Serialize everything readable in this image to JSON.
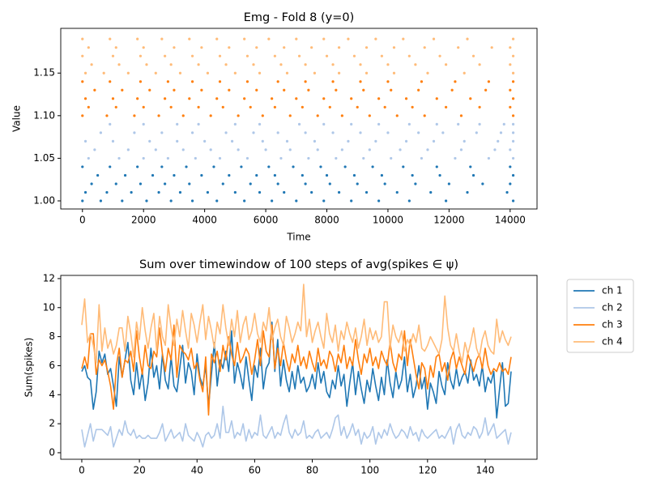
{
  "chart_data": [
    {
      "type": "scatter",
      "title": "Emg - Fold 8 (y=0)",
      "x_label": "Time",
      "y_label": "Value",
      "xlim": [
        -710,
        14880
      ],
      "ylim": [
        0.9905,
        1.2025
      ],
      "xticks": [
        0,
        2000,
        4000,
        6000,
        8000,
        10000,
        12000,
        14000
      ],
      "yticks": [
        {
          "value": 1.0,
          "label": "1.00"
        },
        1.05,
        {
          "value": 1.1,
          "label": "1.10"
        },
        1.15
      ],
      "series": [
        {
          "color": "#1f77b4",
          "y": 1.0,
          "x": [
            0,
            600,
            1300,
            2100,
            2900,
            3600,
            4400,
            5300,
            6200,
            7000,
            7900,
            8800,
            9700,
            10700,
            11900,
            14100
          ]
        },
        {
          "color": "#1f77b4",
          "y": 1.01,
          "x": [
            100,
            800,
            1600,
            2500,
            3200,
            4100,
            5000,
            5800,
            6600,
            7500,
            8400,
            9300,
            10300,
            11400,
            12600,
            13900
          ]
        },
        {
          "color": "#1f77b4",
          "y": 1.02,
          "x": [
            300,
            1100,
            1900,
            2700,
            3500,
            4600,
            5500,
            6400,
            7300,
            8100,
            9000,
            9900,
            10900,
            12000,
            13100,
            14000
          ]
        },
        {
          "color": "#1f77b4",
          "y": 1.03,
          "x": [
            500,
            1400,
            2300,
            3000,
            3900,
            4800,
            5700,
            6300,
            7200,
            8000,
            8900,
            9800,
            10800,
            11700,
            12800,
            14100
          ]
        },
        {
          "color": "#1f77b4",
          "y": 1.04,
          "x": [
            0,
            900,
            1800,
            2600,
            3400,
            4300,
            5200,
            6100,
            6900,
            7800,
            8600,
            9500,
            10500,
            11600,
            12700,
            14000
          ]
        },
        {
          "color": "#aec7e8",
          "y": 1.05,
          "x": [
            200,
            1200,
            2000,
            2800,
            3700,
            4500,
            5400,
            6500,
            7400,
            8300,
            9200,
            10100,
            11100,
            12200,
            13300,
            14100
          ]
        },
        {
          "color": "#aec7e8",
          "y": 1.06,
          "x": [
            400,
            1500,
            2400,
            3300,
            4200,
            5100,
            6000,
            6800,
            7700,
            8500,
            9400,
            10400,
            11300,
            12400,
            13500,
            14000
          ]
        },
        {
          "color": "#aec7e8",
          "y": 1.07,
          "x": [
            100,
            1000,
            2200,
            3100,
            4000,
            4900,
            5900,
            6700,
            7600,
            8700,
            9600,
            10600,
            11500,
            12500,
            13600,
            14100
          ]
        },
        {
          "color": "#aec7e8",
          "y": 1.08,
          "x": [
            600,
            1700,
            2600,
            3600,
            4700,
            5600,
            6400,
            7300,
            8200,
            9100,
            10000,
            11000,
            11800,
            12900,
            13700,
            14100
          ]
        },
        {
          "color": "#aec7e8",
          "y": 1.09,
          "x": [
            900,
            2000,
            3100,
            3800,
            5000,
            5800,
            7100,
            7900,
            8800,
            9700,
            10700,
            11600,
            12300,
            13000,
            13800,
            14100
          ]
        },
        {
          "color": "#ff7f0e",
          "y": 1.1,
          "x": [
            0,
            800,
            1700,
            2500,
            3300,
            4200,
            5100,
            5900,
            6800,
            7700,
            8500,
            9400,
            10300,
            11200,
            12400,
            14100
          ]
        },
        {
          "color": "#ff7f0e",
          "y": 1.11,
          "x": [
            200,
            1100,
            2000,
            2900,
            3800,
            4600,
            5500,
            6300,
            7200,
            8100,
            9000,
            9900,
            10800,
            11900,
            13000,
            14000
          ]
        },
        {
          "color": "#ff7f0e",
          "y": 1.12,
          "x": [
            100,
            1000,
            1800,
            2700,
            3500,
            4400,
            5300,
            6200,
            7000,
            7900,
            8800,
            9700,
            10600,
            11600,
            12700,
            14100
          ]
        },
        {
          "color": "#ff7f0e",
          "y": 1.13,
          "x": [
            400,
            1300,
            2200,
            3000,
            3900,
            4800,
            5700,
            6600,
            7400,
            8300,
            9200,
            10100,
            11000,
            12100,
            13200,
            14000
          ]
        },
        {
          "color": "#ff7f0e",
          "y": 1.14,
          "x": [
            0,
            900,
            1900,
            2800,
            3600,
            4500,
            5400,
            6400,
            7300,
            8200,
            9100,
            10000,
            11100,
            12200,
            13300,
            14100
          ]
        },
        {
          "color": "#ffbb78",
          "y": 1.15,
          "x": [
            100,
            700,
            1500,
            2400,
            3200,
            4100,
            5000,
            5800,
            6700,
            7600,
            8400,
            9300,
            10200,
            11300,
            12500,
            14100
          ]
        },
        {
          "color": "#ffbb78",
          "y": 1.16,
          "x": [
            300,
            1200,
            2100,
            2900,
            3800,
            4700,
            5600,
            6500,
            7300,
            8200,
            9100,
            10000,
            10900,
            11900,
            13000,
            14000
          ]
        },
        {
          "color": "#ffbb78",
          "y": 1.17,
          "x": [
            0,
            1000,
            1900,
            2700,
            3600,
            4500,
            5400,
            6300,
            7100,
            8000,
            8900,
            9800,
            10700,
            11700,
            12800,
            14100
          ]
        },
        {
          "color": "#ffbb78",
          "y": 1.18,
          "x": [
            200,
            1100,
            2000,
            3000,
            3900,
            4800,
            5700,
            6600,
            7500,
            8400,
            9300,
            10200,
            11200,
            12300,
            13400,
            14000
          ]
        },
        {
          "color": "#ffbb78",
          "y": 1.19,
          "x": [
            0,
            900,
            1800,
            2600,
            3500,
            4400,
            5300,
            6100,
            7000,
            7900,
            8700,
            9600,
            10500,
            11500,
            12600,
            14100
          ]
        }
      ]
    },
    {
      "type": "line",
      "title": "Sum over timewindow of 100 steps of avg(spikes ∈ ψ)",
      "y_label": "Sum(spikes)",
      "xlim": [
        -7.3,
        158
      ],
      "ylim": [
        -0.45,
        12.22
      ],
      "xticks": [
        0,
        20,
        40,
        60,
        80,
        100,
        120,
        140
      ],
      "yticks": [
        0,
        2,
        4,
        6,
        8,
        10,
        12
      ],
      "series": [
        {
          "name": "ch 1",
          "color": "#1f77b4",
          "values": [
            5.6,
            6.0,
            5.2,
            5.0,
            3.0,
            4.2,
            7.0,
            6.2,
            6.8,
            5.4,
            5.8,
            4.6,
            3.2,
            6.6,
            5.2,
            6.4,
            7.6,
            5.0,
            4.0,
            6.2,
            4.4,
            5.6,
            3.6,
            4.8,
            7.2,
            5.2,
            6.0,
            4.4,
            6.8,
            5.0,
            4.4,
            6.6,
            4.6,
            4.2,
            5.8,
            7.4,
            4.8,
            6.2,
            5.6,
            4.0,
            6.8,
            5.2,
            4.6,
            6.0,
            3.2,
            5.4,
            7.6,
            4.6,
            6.4,
            5.8,
            7.0,
            5.6,
            8.4,
            4.8,
            6.2,
            5.4,
            4.4,
            6.6,
            5.0,
            3.6,
            6.0,
            5.2,
            7.2,
            4.4,
            5.8,
            6.2,
            9.0,
            5.6,
            7.8,
            4.6,
            6.4,
            5.0,
            4.2,
            5.6,
            4.4,
            6.0,
            4.8,
            5.2,
            4.2,
            4.6,
            5.4,
            4.4,
            6.2,
            4.8,
            5.6,
            4.2,
            3.8,
            5.0,
            4.4,
            6.0,
            4.6,
            5.4,
            3.2,
            4.8,
            6.2,
            4.0,
            5.6,
            4.4,
            3.4,
            5.0,
            4.2,
            5.8,
            4.6,
            3.6,
            5.2,
            4.0,
            6.4,
            4.8,
            3.8,
            5.6,
            4.4,
            5.0,
            6.6,
            4.2,
            5.4,
            3.8,
            4.6,
            6.0,
            4.4,
            5.2,
            3.0,
            4.8,
            4.2,
            3.4,
            5.6,
            4.6,
            4.0,
            6.2,
            5.0,
            4.4,
            5.8,
            4.6,
            5.2,
            5.6,
            4.8,
            6.4,
            5.0,
            5.4,
            4.6,
            6.0,
            4.2,
            5.2,
            4.8,
            5.6,
            2.4,
            4.4,
            6.2,
            3.2,
            3.4,
            5.6
          ]
        },
        {
          "name": "ch 2",
          "color": "#aec7e8",
          "values": [
            1.6,
            0.4,
            1.2,
            2.0,
            0.8,
            1.6,
            1.6,
            1.6,
            1.4,
            1.2,
            1.8,
            0.4,
            1.0,
            1.6,
            1.2,
            2.2,
            1.4,
            1.2,
            1.6,
            1.0,
            1.2,
            1.0,
            1.0,
            1.2,
            1.0,
            1.0,
            1.0,
            1.4,
            2.0,
            0.8,
            1.2,
            1.6,
            1.0,
            1.2,
            1.4,
            0.8,
            2.0,
            1.2,
            1.0,
            0.8,
            1.4,
            1.0,
            0.4,
            1.2,
            1.4,
            1.0,
            1.2,
            2.0,
            1.0,
            3.2,
            1.4,
            1.4,
            2.2,
            1.0,
            1.4,
            1.2,
            2.0,
            0.8,
            1.6,
            1.0,
            1.4,
            1.2,
            2.6,
            1.2,
            1.0,
            1.4,
            1.8,
            1.0,
            1.4,
            1.2,
            2.0,
            2.6,
            1.4,
            1.0,
            1.6,
            1.2,
            1.4,
            2.2,
            1.0,
            1.2,
            1.0,
            1.4,
            1.6,
            1.0,
            1.2,
            1.4,
            1.0,
            1.6,
            2.4,
            2.6,
            1.2,
            1.8,
            1.0,
            1.4,
            2.0,
            1.2,
            1.6,
            0.6,
            1.4,
            1.0,
            1.2,
            1.8,
            0.6,
            1.4,
            1.0,
            1.6,
            1.2,
            2.0,
            1.4,
            1.0,
            1.2,
            1.6,
            1.4,
            1.0,
            1.8,
            1.2,
            1.4,
            0.8,
            1.6,
            1.2,
            1.0,
            1.2,
            1.4,
            1.6,
            1.0,
            1.2,
            1.0,
            1.4,
            1.8,
            0.6,
            1.6,
            2.0,
            1.2,
            1.0,
            1.4,
            1.2,
            1.8,
            1.6,
            1.0,
            1.4,
            2.4,
            1.2,
            1.6,
            2.0,
            1.0,
            1.2,
            1.4,
            1.6,
            0.6,
            1.4
          ]
        },
        {
          "name": "ch 3",
          "color": "#ff7f0e",
          "values": [
            5.8,
            6.6,
            5.8,
            8.2,
            8.2,
            5.4,
            6.4,
            6.0,
            6.4,
            5.6,
            4.6,
            3.0,
            6.0,
            7.2,
            5.2,
            6.4,
            6.2,
            7.0,
            5.6,
            8.4,
            6.6,
            5.4,
            7.4,
            6.0,
            5.8,
            7.0,
            6.6,
            8.6,
            6.8,
            5.6,
            7.2,
            6.4,
            8.8,
            5.2,
            7.4,
            7.0,
            6.8,
            6.4,
            7.2,
            5.8,
            6.2,
            5.0,
            4.2,
            6.6,
            2.6,
            6.8,
            6.2,
            7.0,
            5.6,
            7.4,
            6.4,
            8.0,
            6.8,
            6.0,
            7.6,
            6.2,
            6.6,
            7.2,
            6.8,
            5.4,
            6.4,
            7.8,
            6.0,
            8.4,
            7.0,
            6.6,
            8.8,
            5.8,
            7.2,
            6.0,
            7.6,
            6.4,
            5.6,
            6.8,
            6.2,
            7.4,
            6.0,
            6.6,
            5.8,
            7.0,
            6.2,
            5.6,
            7.2,
            6.0,
            6.4,
            5.8,
            7.0,
            6.6,
            5.6,
            6.8,
            6.2,
            7.4,
            5.8,
            6.6,
            6.0,
            7.8,
            6.4,
            5.4,
            6.8,
            6.2,
            7.2,
            6.0,
            6.6,
            5.8,
            7.0,
            6.4,
            6.0,
            7.6,
            6.2,
            5.6,
            6.8,
            6.4,
            8.4,
            6.0,
            7.8,
            6.6,
            5.4,
            4.4,
            6.2,
            5.8,
            4.4,
            6.0,
            5.2,
            6.6,
            6.8,
            5.6,
            6.2,
            5.0,
            6.4,
            7.0,
            5.8,
            6.6,
            6.0,
            5.4,
            6.8,
            6.2,
            5.6,
            6.4,
            6.8,
            5.8,
            7.2,
            6.0,
            5.4,
            5.8,
            5.6,
            6.2,
            5.6,
            5.8,
            5.4,
            6.6
          ]
        },
        {
          "name": "ch 4",
          "color": "#ffbb78",
          "values": [
            8.8,
            10.6,
            7.6,
            8.2,
            7.4,
            6.2,
            10.2,
            7.0,
            8.6,
            7.2,
            7.8,
            6.8,
            7.4,
            8.6,
            8.6,
            7.0,
            9.4,
            8.2,
            6.6,
            9.0,
            7.8,
            10.0,
            8.4,
            7.2,
            8.6,
            9.6,
            7.0,
            9.4,
            8.0,
            7.4,
            10.2,
            8.6,
            7.4,
            9.2,
            8.0,
            9.8,
            8.4,
            7.2,
            9.6,
            8.8,
            7.6,
            9.0,
            10.2,
            7.8,
            9.4,
            8.4,
            7.2,
            9.0,
            8.2,
            10.2,
            8.6,
            7.4,
            9.2,
            8.0,
            9.8,
            7.6,
            8.8,
            9.4,
            7.8,
            8.4,
            9.6,
            8.2,
            7.6,
            9.0,
            8.4,
            10.0,
            7.8,
            8.6,
            9.2,
            8.0,
            7.4,
            9.4,
            8.6,
            7.6,
            8.2,
            9.0,
            8.4,
            11.6,
            8.0,
            9.2,
            7.6,
            8.4,
            9.0,
            8.0,
            7.2,
            9.6,
            8.2,
            7.6,
            8.8,
            7.0,
            8.4,
            7.8,
            9.0,
            8.2,
            7.6,
            8.6,
            7.2,
            8.0,
            9.2,
            7.4,
            8.6,
            7.8,
            8.4,
            7.6,
            8.0,
            10.4,
            10.4,
            7.2,
            8.8,
            8.0,
            7.6,
            8.4,
            7.0,
            7.8,
            7.4,
            8.2,
            7.6,
            8.8,
            7.2,
            7.0,
            7.4,
            8.0,
            7.6,
            7.2,
            6.8,
            7.8,
            10.8,
            8.6,
            7.4,
            7.0,
            8.2,
            7.0,
            6.2,
            7.6,
            6.8,
            7.6,
            8.6,
            7.2,
            6.6,
            7.8,
            8.4,
            7.4,
            7.0,
            6.8,
            9.2,
            7.6,
            8.4,
            7.8,
            7.4,
            8.0
          ]
        }
      ],
      "legend": "outside-right"
    }
  ]
}
